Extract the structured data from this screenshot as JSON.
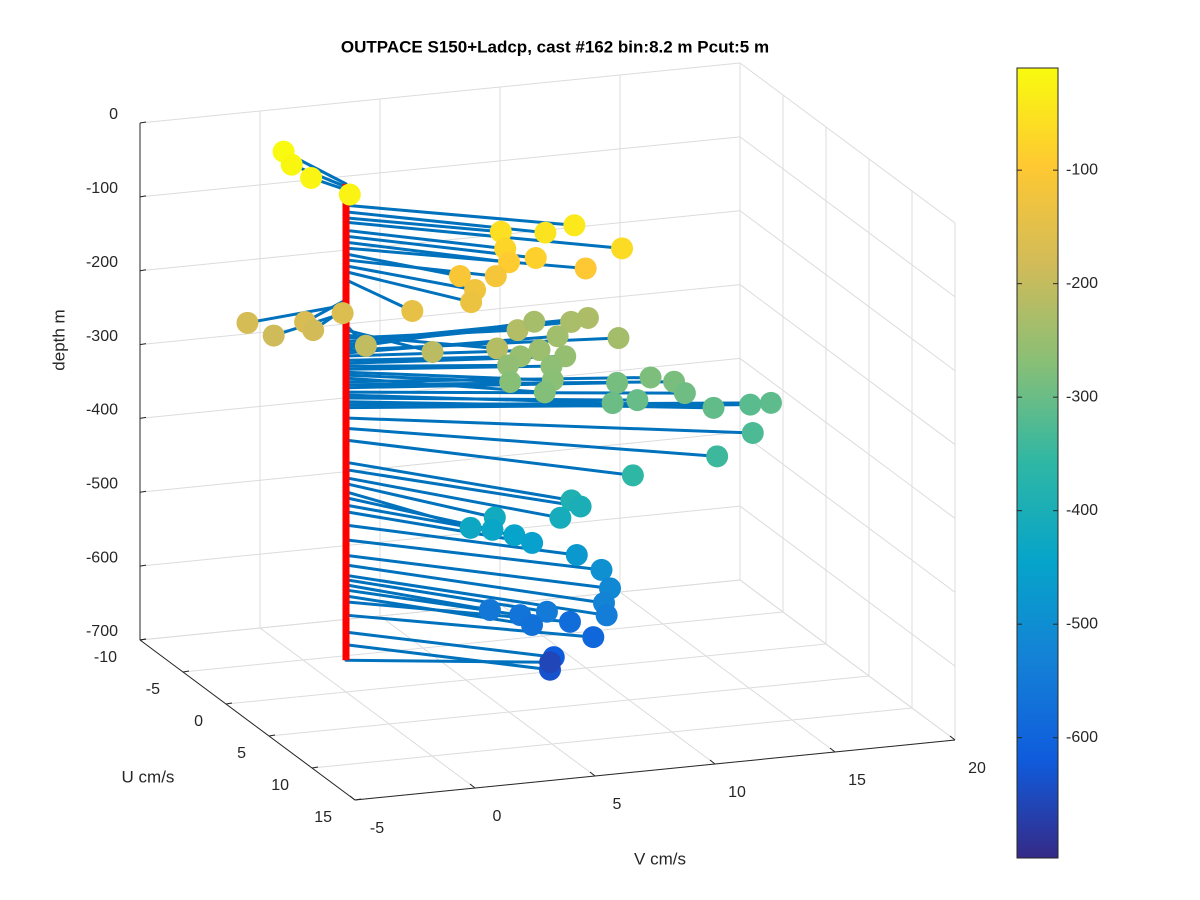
{
  "chart_data": {
    "type": "scatter3",
    "title": "OUTPACE S150+Ladcp, cast #162 bin:8.2 m  Pcut:5 m",
    "ulabel": "U cm/s",
    "vlabel": "V cm/s",
    "zlabel": "depth m",
    "ulim": [
      -10,
      15
    ],
    "vlim": [
      -5,
      20
    ],
    "zlim": [
      -700,
      0
    ],
    "uticks": [
      -10,
      -5,
      0,
      5,
      10,
      15
    ],
    "vticks": [
      -5,
      0,
      5,
      10,
      15,
      20
    ],
    "zticks": [
      0,
      -100,
      -200,
      -300,
      -400,
      -500,
      -600,
      -700
    ],
    "clim": [
      -706,
      -10
    ],
    "cticks": [
      -100,
      -200,
      -300,
      -400,
      -500,
      -600
    ],
    "colormap": [
      "#352a87",
      "#0f5cdd",
      "#1481d6",
      "#06a4ca",
      "#2eb7a4",
      "#87bf77",
      "#d1bb59",
      "#fec832",
      "#f9fb0e"
    ],
    "line_color": "#0072bd",
    "stem_color": "#ff0000",
    "grid": true,
    "u": [
      -5.3,
      -3.8,
      -2.1,
      0.3,
      5.9,
      5.6,
      4.05,
      7.4,
      4.7,
      5.6,
      5.0,
      6.1,
      4.6,
      4.3,
      5.1,
      5.9,
      5.2,
      2.4,
      2.5,
      1.1,
      2.6,
      2.2,
      3.15,
      4.2,
      3.9,
      1.25,
      0.03,
      -0.06,
      -1.0,
      2.1,
      0.6,
      1.85,
      1.85,
      2.05,
      2.1,
      2.4,
      3.95,
      3.2,
      4.7,
      3.6,
      4.1,
      3.06,
      4.8,
      4.77,
      4.3,
      5.9,
      5.6,
      5.15,
      7.67,
      8.97,
      8.8,
      8.35,
      8.3,
      8.46,
      6.7,
      6.67,
      6.43,
      6.46,
      6.85,
      7.3,
      7.66,
      8.18,
      8.79,
      9.1,
      7.18,
      5.43,
      5.84,
      6.56,
      5.84,
      6.43,
      6.3,
      6.25,
      3.09
    ],
    "v": [
      -0.7,
      -0.9,
      -0.7,
      0.05,
      7.4,
      6.3,
      5.0,
      8.85,
      4.95,
      5.9,
      5.0,
      7.8,
      3.1,
      4.7,
      3.55,
      3.1,
      0.9,
      -1.0,
      -2.6,
      -4.5,
      -2.3,
      -3.8,
      -0.3,
      2.1,
      4.9,
      6.7,
      10.07,
      9.4,
      8.2,
      10.6,
      8.6,
      7.4,
      6.6,
      8.4,
      6.0,
      7.7,
      7.2,
      5.7,
      6.6,
      11.4,
      12.2,
      10.2,
      12.4,
      9.4,
      10.6,
      13.2,
      15.7,
      15.0,
      14.2,
      12.25,
      8.8,
      6.4,
      6.8,
      5.9,
      3.8,
      2.8,
      3.8,
      4.7,
      5.3,
      7.0,
      7.9,
      8.07,
      7.6,
      7.6,
      5.8,
      4.05,
      5.16,
      5.4,
      7.24,
      8.0,
      6.4,
      6.26,
      7.4
    ],
    "z": [
      -12,
      -16,
      -20,
      -24,
      -41,
      -50,
      -58,
      -64,
      -75,
      -83,
      -91,
      -99,
      -107,
      -115,
      -123,
      -131,
      -142,
      -163,
      -169,
      -176,
      -180,
      -186,
      -203,
      -210,
      -217,
      -221,
      -226,
      -230,
      -234,
      -237,
      -241,
      -245,
      -251,
      -255,
      -259,
      -263,
      -267,
      -271,
      -275,
      -280,
      -284,
      -288,
      -294,
      -298,
      -302,
      -307,
      -311,
      -315,
      -329,
      -343,
      -359,
      -389,
      -399,
      -410,
      -418,
      -429,
      -437,
      -447,
      -456,
      -474,
      -494,
      -515,
      -528,
      -542,
      -548,
      -555,
      -562,
      -570,
      -578,
      -596,
      -619,
      -636,
      -657
    ]
  }
}
